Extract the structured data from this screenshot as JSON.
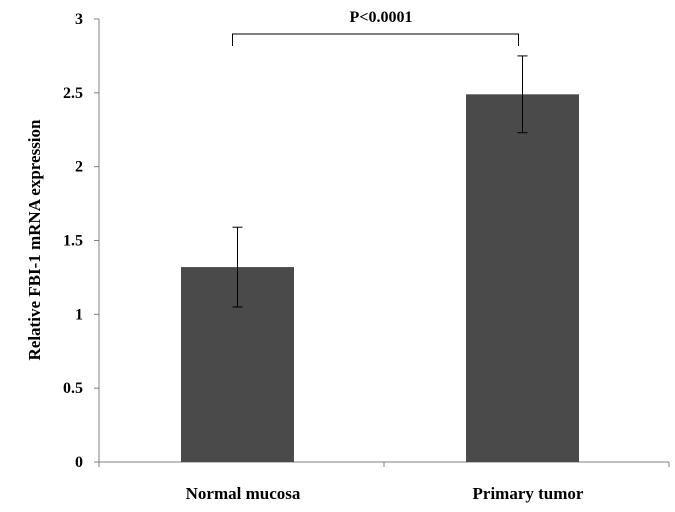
{
  "chart_data": {
    "type": "bar",
    "title": "",
    "xlabel": "",
    "ylabel": "Relative FBI-1 mRNA expression",
    "categories": [
      "Normal mucosa",
      "Primary tumor"
    ],
    "values": [
      1.32,
      2.49
    ],
    "error_bars": [
      0.27,
      0.26
    ],
    "ylim": [
      0,
      3
    ],
    "yticks": [
      "0",
      "0.5",
      "1",
      "1.5",
      "2",
      "2.5",
      "3"
    ],
    "grid": false,
    "legend": "none",
    "bar_color": "#4a4a4a",
    "annotation": {
      "text": "P<0.0001",
      "between": [
        "Normal mucosa",
        "Primary tumor"
      ]
    }
  }
}
